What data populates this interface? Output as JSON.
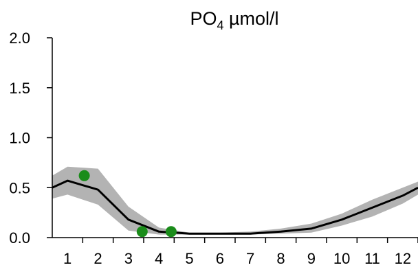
{
  "chart_data": {
    "type": "line",
    "title_main": "PO",
    "title_sub": "4",
    "title_unit": " µmol/l",
    "x_ticks": [
      "1",
      "2",
      "3",
      "4",
      "5",
      "6",
      "7",
      "8",
      "9",
      "10",
      "11",
      "12"
    ],
    "y_ticks": [
      "0.0",
      "0.5",
      "1.0",
      "1.5",
      "2.0"
    ],
    "xlim": [
      0.5,
      12.5
    ],
    "ylim": [
      0,
      2.0
    ],
    "grid": false,
    "series": [
      {
        "kind": "line",
        "color": "#000000",
        "x": [
          0.5,
          1,
          2,
          3,
          4,
          5,
          6,
          7,
          8,
          9,
          10,
          11,
          12,
          12.5
        ],
        "y": [
          0.5,
          0.57,
          0.48,
          0.18,
          0.06,
          0.04,
          0.04,
          0.04,
          0.06,
          0.09,
          0.18,
          0.3,
          0.42,
          0.5
        ]
      },
      {
        "kind": "band",
        "color": "#b3b3b3",
        "x": [
          0.5,
          1,
          2,
          3,
          4,
          5,
          6,
          7,
          8,
          9,
          10,
          11,
          12,
          12.5
        ],
        "upper": [
          0.62,
          0.71,
          0.69,
          0.31,
          0.1,
          0.05,
          0.05,
          0.06,
          0.09,
          0.14,
          0.24,
          0.38,
          0.5,
          0.56
        ],
        "lower": [
          0.39,
          0.43,
          0.33,
          0.07,
          0.03,
          0.03,
          0.03,
          0.03,
          0.04,
          0.05,
          0.12,
          0.21,
          0.34,
          0.43
        ]
      },
      {
        "kind": "points",
        "color": "#1a8c1a",
        "x": [
          1.55,
          3.45,
          4.4
        ],
        "y": [
          0.62,
          0.06,
          0.06
        ]
      }
    ]
  }
}
